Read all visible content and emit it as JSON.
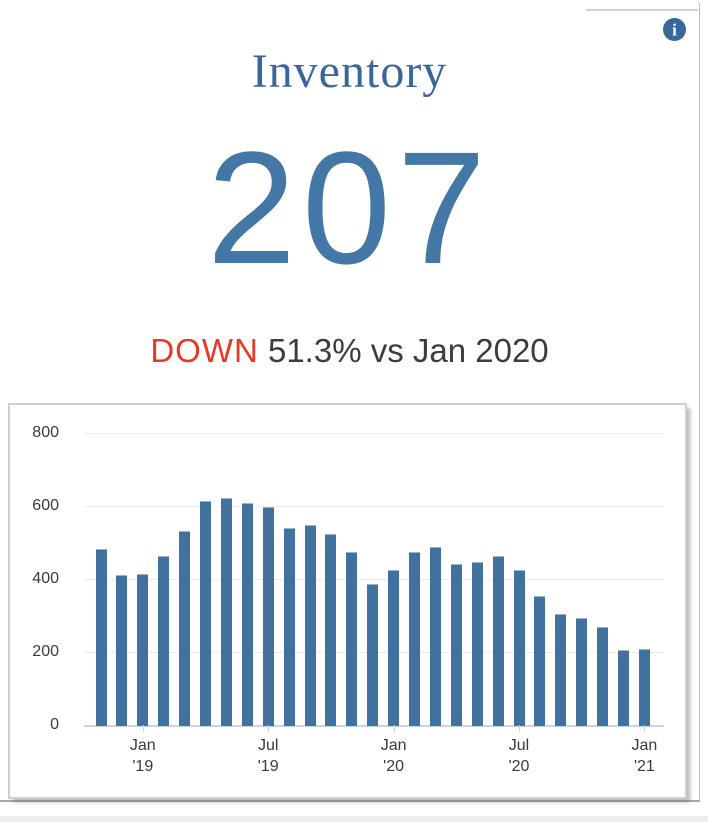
{
  "card": {
    "title": "Inventory",
    "value": "207",
    "delta": {
      "direction": "DOWN",
      "rest": " 51.3% vs Jan 2020"
    },
    "icons": {
      "info_glyph": "i"
    },
    "colors": {
      "title_blue": "#3a679b",
      "number_blue": "#4377a5",
      "red": "#e63a24",
      "dark_text": "#3c3c3c",
      "bar_blue": "#41719f",
      "info_blue": "#38679a"
    }
  },
  "chart_data": {
    "type": "bar",
    "title": "",
    "xlabel": "",
    "ylabel": "",
    "grid": true,
    "ylim": [
      0,
      800
    ],
    "yticks": [
      0,
      200,
      400,
      600,
      800
    ],
    "categories": [
      "Nov '18",
      "Dec '18",
      "Jan '19",
      "Feb '19",
      "Mar '19",
      "Apr '19",
      "May '19",
      "Jun '19",
      "Jul '19",
      "Aug '19",
      "Sep '19",
      "Oct '19",
      "Nov '19",
      "Dec '19",
      "Jan '20",
      "Feb '20",
      "Mar '20",
      "Apr '20",
      "May '20",
      "Jun '20",
      "Jul '20",
      "Aug '20",
      "Sep '20",
      "Oct '20",
      "Nov '20",
      "Dec '20",
      "Jan '21"
    ],
    "values": [
      481,
      410,
      414,
      462,
      531,
      612,
      622,
      608,
      596,
      540,
      546,
      522,
      474,
      385,
      425,
      474,
      486,
      441,
      446,
      462,
      425,
      352,
      303,
      292,
      267,
      205,
      207
    ],
    "xticks": [
      {
        "line1": "Jan",
        "line2": "'19",
        "month_index": 2
      },
      {
        "line1": "Jul",
        "line2": "'19",
        "month_index": 8
      },
      {
        "line1": "Jan",
        "line2": "'20",
        "month_index": 14
      },
      {
        "line1": "Jul",
        "line2": "'20",
        "month_index": 20
      },
      {
        "line1": "Jan",
        "line2": "'21",
        "month_index": 26
      }
    ],
    "bar_color": "#41719f"
  }
}
